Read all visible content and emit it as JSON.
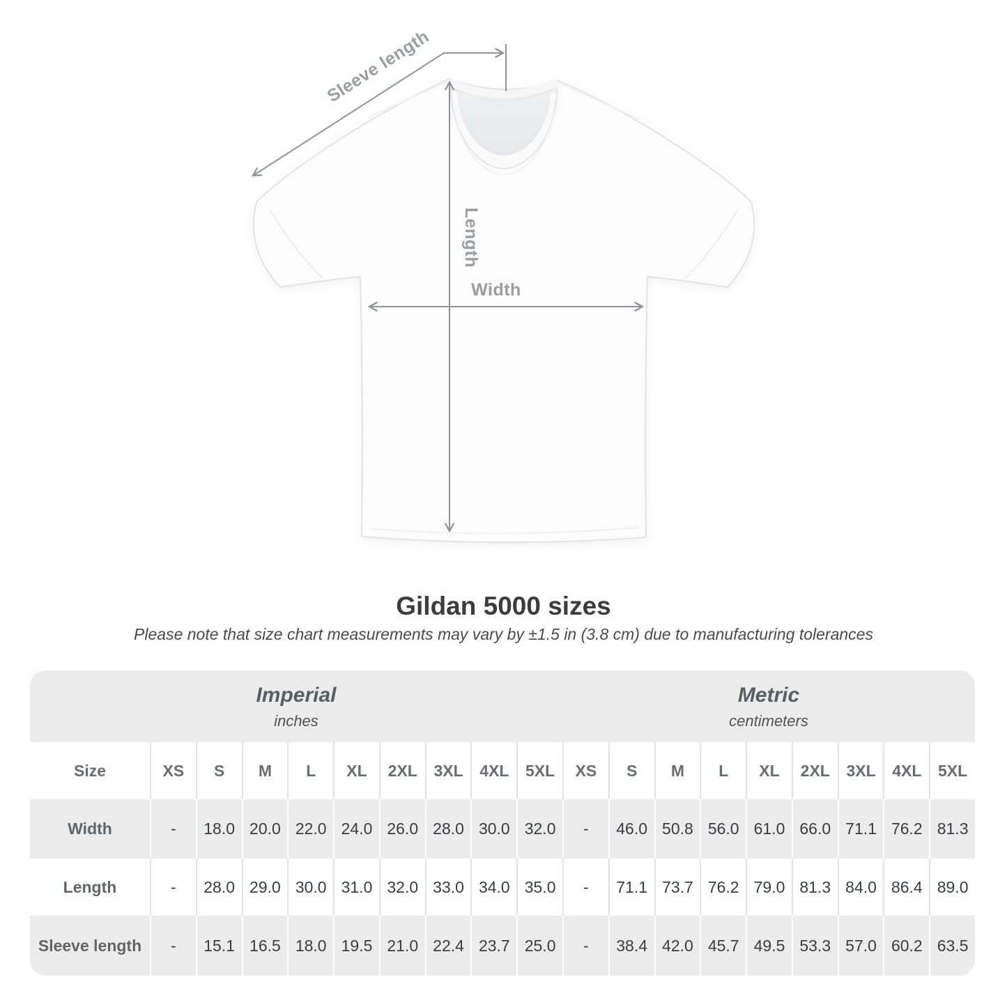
{
  "diagram": {
    "sleeve_length_label": "Sleeve length",
    "length_label": "Length",
    "width_label": "Width"
  },
  "title_block": {
    "title": "Gildan 5000 sizes",
    "note": "Please note that size chart measurements may vary by ±1.5 in (3.8 cm) due to manufacturing tolerances"
  },
  "chart_data": {
    "type": "table",
    "title": "Gildan 5000 sizes",
    "subtitle": "Please note that size chart measurements may vary by ±1.5 in (3.8 cm) due to manufacturing tolerances",
    "size_header": "Size",
    "column_groups": [
      {
        "label": "Imperial",
        "sublabel": "inches",
        "span": 9
      },
      {
        "label": "Metric",
        "sublabel": "centimeters",
        "span": 9
      }
    ],
    "columns": [
      "XS",
      "S",
      "M",
      "L",
      "XL",
      "2XL",
      "3XL",
      "4XL",
      "5XL",
      "XS",
      "S",
      "M",
      "L",
      "XL",
      "2XL",
      "3XL",
      "4XL",
      "5XL"
    ],
    "rows": [
      {
        "label": "Width",
        "values": [
          "-",
          "18.0",
          "20.0",
          "22.0",
          "24.0",
          "26.0",
          "28.0",
          "30.0",
          "32.0",
          "-",
          "46.0",
          "50.8",
          "56.0",
          "61.0",
          "66.0",
          "71.1",
          "76.2",
          "81.3"
        ]
      },
      {
        "label": "Length",
        "values": [
          "-",
          "28.0",
          "29.0",
          "30.0",
          "31.0",
          "32.0",
          "33.0",
          "34.0",
          "35.0",
          "-",
          "71.1",
          "73.7",
          "76.2",
          "79.0",
          "81.3",
          "84.0",
          "86.4",
          "89.0"
        ]
      },
      {
        "label": "Sleeve length",
        "values": [
          "-",
          "15.1",
          "16.5",
          "18.0",
          "19.5",
          "21.0",
          "22.4",
          "23.7",
          "25.0",
          "-",
          "38.4",
          "42.0",
          "45.7",
          "49.5",
          "53.3",
          "57.0",
          "60.2",
          "63.5"
        ]
      }
    ]
  }
}
